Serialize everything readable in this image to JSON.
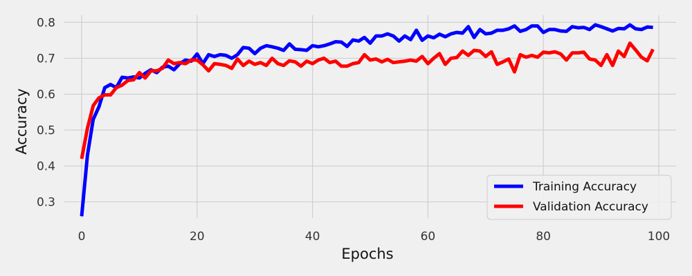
{
  "chart_data": {
    "type": "line",
    "title": "",
    "xlabel": "Epochs",
    "ylabel": "Accuracy",
    "xlim": [
      -3,
      103
    ],
    "ylim": [
      0.255,
      0.82
    ],
    "xticks": [
      0,
      20,
      40,
      60,
      80,
      100
    ],
    "xtick_labels": [
      "0",
      "20",
      "40",
      "60",
      "80",
      "100"
    ],
    "yticks": [
      0.3,
      0.4,
      0.5,
      0.6,
      0.7,
      0.8
    ],
    "ytick_labels": [
      "0.3",
      "0.4",
      "0.5",
      "0.6",
      "0.7",
      "0.8"
    ],
    "grid": true,
    "legend_position": "lower-right",
    "series": [
      {
        "name": "Training Accuracy",
        "color": "#0000ff",
        "x": [
          0,
          1,
          2,
          3,
          4,
          5,
          6,
          7,
          8,
          9,
          10,
          11,
          12,
          13,
          14,
          15,
          16,
          17,
          18,
          19,
          20,
          21,
          22,
          23,
          24,
          25,
          26,
          27,
          28,
          29,
          30,
          31,
          32,
          33,
          34,
          35,
          36,
          37,
          38,
          39,
          40,
          41,
          42,
          43,
          44,
          45,
          46,
          47,
          48,
          49,
          50,
          51,
          52,
          53,
          54,
          55,
          56,
          57,
          58,
          59,
          60,
          61,
          62,
          63,
          64,
          65,
          66,
          67,
          68,
          69,
          70,
          71,
          72,
          73,
          74,
          75,
          76,
          77,
          78,
          79,
          80,
          81,
          82,
          83,
          84,
          85,
          86,
          87,
          88,
          89,
          90,
          91,
          92,
          93,
          94,
          95,
          96,
          97,
          98,
          99
        ],
        "values": [
          0.26,
          0.43,
          0.53,
          0.565,
          0.618,
          0.627,
          0.618,
          0.647,
          0.645,
          0.648,
          0.645,
          0.658,
          0.668,
          0.66,
          0.675,
          0.678,
          0.668,
          0.685,
          0.695,
          0.692,
          0.712,
          0.685,
          0.71,
          0.705,
          0.71,
          0.708,
          0.7,
          0.71,
          0.73,
          0.728,
          0.713,
          0.728,
          0.735,
          0.732,
          0.728,
          0.722,
          0.74,
          0.725,
          0.724,
          0.722,
          0.735,
          0.732,
          0.735,
          0.74,
          0.746,
          0.745,
          0.733,
          0.751,
          0.748,
          0.758,
          0.742,
          0.762,
          0.762,
          0.768,
          0.762,
          0.748,
          0.762,
          0.752,
          0.778,
          0.75,
          0.762,
          0.757,
          0.767,
          0.76,
          0.768,
          0.772,
          0.77,
          0.788,
          0.758,
          0.78,
          0.768,
          0.77,
          0.778,
          0.778,
          0.782,
          0.79,
          0.775,
          0.78,
          0.79,
          0.79,
          0.772,
          0.78,
          0.78,
          0.776,
          0.775,
          0.788,
          0.785,
          0.786,
          0.78,
          0.793,
          0.788,
          0.782,
          0.776,
          0.783,
          0.782,
          0.793,
          0.782,
          0.78,
          0.787,
          0.786
        ]
      },
      {
        "name": "Validation Accuracy",
        "color": "#ff0000",
        "x": [
          0,
          1,
          2,
          3,
          4,
          5,
          6,
          7,
          8,
          9,
          10,
          11,
          12,
          13,
          14,
          15,
          16,
          17,
          18,
          19,
          20,
          21,
          22,
          23,
          24,
          25,
          26,
          27,
          28,
          29,
          30,
          31,
          32,
          33,
          34,
          35,
          36,
          37,
          38,
          39,
          40,
          41,
          42,
          43,
          44,
          45,
          46,
          47,
          48,
          49,
          50,
          51,
          52,
          53,
          54,
          55,
          56,
          57,
          58,
          59,
          60,
          61,
          62,
          63,
          64,
          65,
          66,
          67,
          68,
          69,
          70,
          71,
          72,
          73,
          74,
          75,
          76,
          77,
          78,
          79,
          80,
          81,
          82,
          83,
          84,
          85,
          86,
          87,
          88,
          89,
          90,
          91,
          92,
          93,
          94,
          95,
          96,
          97,
          98,
          99
        ],
        "values": [
          0.42,
          0.505,
          0.568,
          0.59,
          0.598,
          0.598,
          0.618,
          0.625,
          0.638,
          0.64,
          0.66,
          0.645,
          0.665,
          0.665,
          0.672,
          0.695,
          0.685,
          0.688,
          0.685,
          0.695,
          0.695,
          0.682,
          0.665,
          0.685,
          0.683,
          0.68,
          0.672,
          0.698,
          0.68,
          0.692,
          0.683,
          0.688,
          0.68,
          0.7,
          0.685,
          0.68,
          0.693,
          0.69,
          0.678,
          0.692,
          0.685,
          0.695,
          0.7,
          0.688,
          0.692,
          0.678,
          0.678,
          0.685,
          0.688,
          0.71,
          0.695,
          0.698,
          0.69,
          0.697,
          0.688,
          0.69,
          0.692,
          0.695,
          0.692,
          0.705,
          0.685,
          0.7,
          0.713,
          0.683,
          0.7,
          0.702,
          0.72,
          0.708,
          0.722,
          0.72,
          0.705,
          0.718,
          0.683,
          0.69,
          0.698,
          0.662,
          0.71,
          0.703,
          0.708,
          0.703,
          0.717,
          0.715,
          0.718,
          0.712,
          0.695,
          0.715,
          0.715,
          0.717,
          0.698,
          0.695,
          0.68,
          0.71,
          0.68,
          0.72,
          0.705,
          0.742,
          0.723,
          0.703,
          0.693,
          0.725
        ]
      }
    ]
  }
}
